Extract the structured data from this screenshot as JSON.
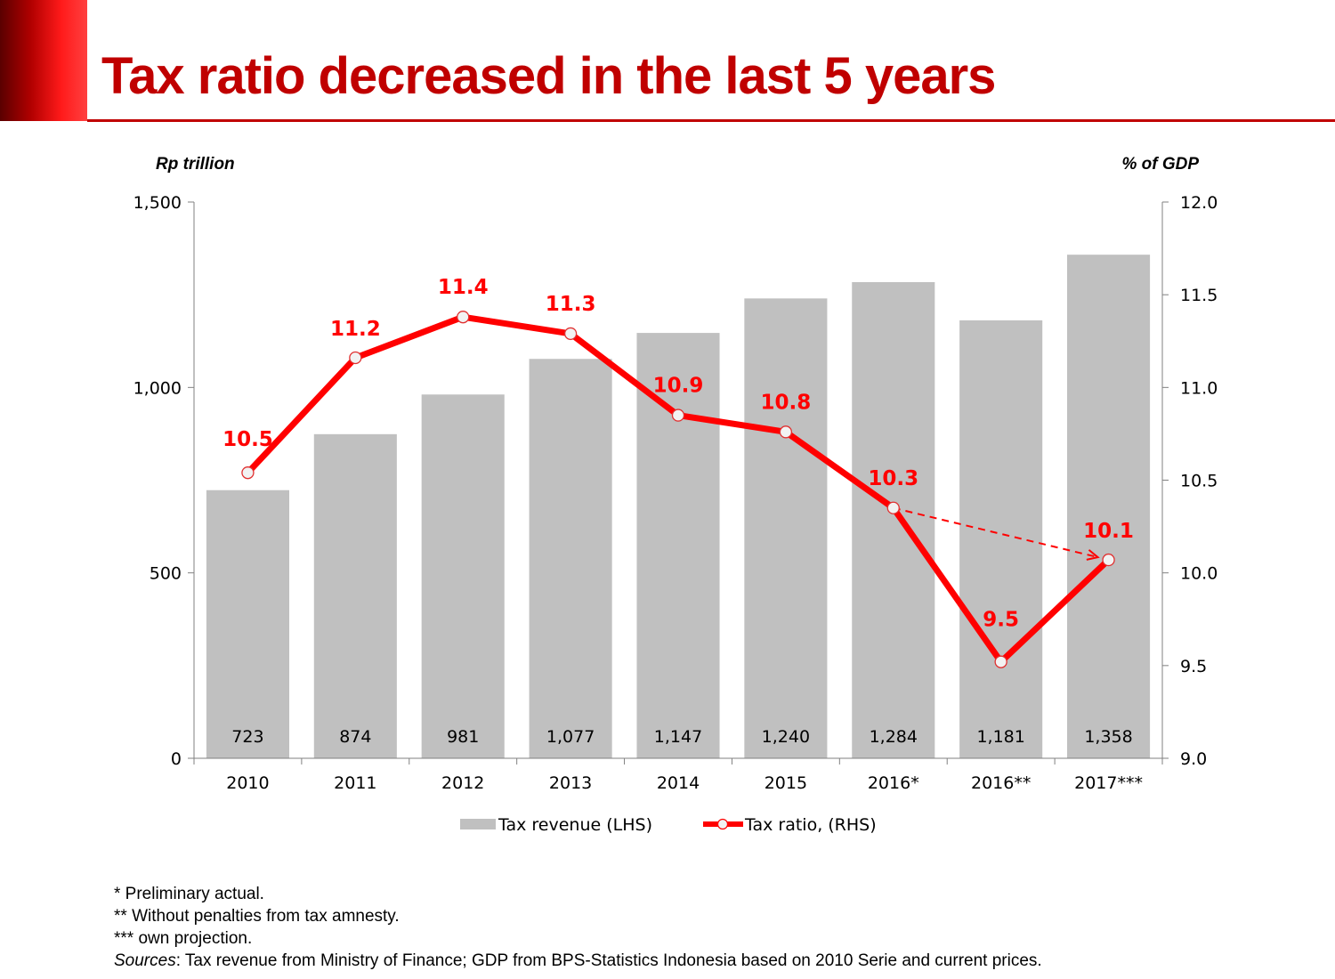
{
  "slide": {
    "title": "Tax ratio decreased in the last 5 years",
    "footnotes": [
      "* Preliminary actual.",
      "** Without penalties from tax amnesty.",
      "*** own projection."
    ],
    "sources_label": "Sources",
    "sources_text": ": Tax revenue from Ministry of Finance; GDP from BPS-Statistics Indonesia based on 2010 Serie and current prices."
  },
  "colors": {
    "title": "#c00000",
    "bars": "#c0c0c0",
    "line": "#ff0000",
    "label": "#ff0000",
    "marker_fill": "#f2f2f2"
  },
  "chart_data": {
    "type": "bar",
    "categories": [
      "2010",
      "2011",
      "2012",
      "2013",
      "2014",
      "2015",
      "2016*",
      "2016**",
      "2017***"
    ],
    "left_axis_unit": "Rp trillion",
    "right_axis_unit": "% of GDP",
    "left_axis": {
      "ylim": [
        0,
        1500
      ],
      "ticks": [
        0,
        500,
        1000,
        1500
      ],
      "tick_labels": [
        "0",
        "500",
        "1,000",
        "1,500"
      ]
    },
    "right_axis": {
      "ylim": [
        9.0,
        12.0
      ],
      "ticks": [
        9.0,
        9.5,
        10.0,
        10.5,
        11.0,
        11.5,
        12.0
      ],
      "tick_labels": [
        "9.0",
        "9.5",
        "10.0",
        "10.5",
        "11.0",
        "11.5",
        "12.0"
      ]
    },
    "series": [
      {
        "name": "Tax revenue (LHS)",
        "type": "bar",
        "axis": "left",
        "values": [
          723,
          874,
          981,
          1077,
          1147,
          1240,
          1284,
          1181,
          1358
        ],
        "labels": [
          "723",
          "874",
          "981",
          "1,077",
          "1,147",
          "1,240",
          "1,284",
          "1,181",
          "1,358"
        ]
      },
      {
        "name": "Tax ratio, (RHS)",
        "type": "line",
        "axis": "right",
        "values": [
          10.54,
          11.16,
          11.38,
          11.29,
          10.85,
          10.76,
          10.35,
          9.52,
          10.07
        ],
        "labels": [
          "10.5",
          "11.2",
          "11.4",
          "11.3",
          "10.9",
          "10.8",
          "10.3",
          "9.5",
          "10.1"
        ]
      }
    ],
    "annotation": {
      "type": "dashed-arrow",
      "from_category": "2016*",
      "to_category": "2017***"
    },
    "legend_position": "bottom",
    "grid": false
  }
}
